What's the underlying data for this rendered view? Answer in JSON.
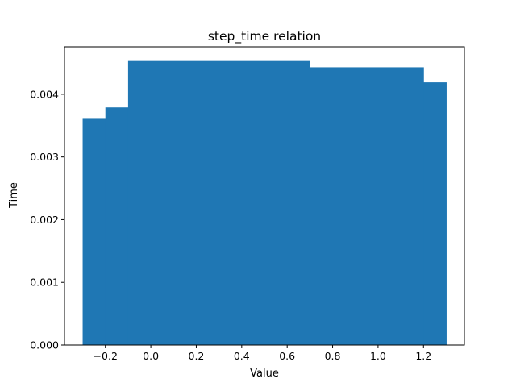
{
  "chart_data": {
    "type": "bar",
    "title": "step_time relation",
    "xlabel": "Value",
    "ylabel": "Time",
    "bar_color": "#1f77b4",
    "xlim": [
      -0.38,
      1.38
    ],
    "ylim": [
      0,
      0.004757
    ],
    "grid": false,
    "bars": [
      {
        "x0": -0.3,
        "x1": -0.2,
        "value": 0.00362
      },
      {
        "x0": -0.2,
        "x1": -0.1,
        "value": 0.00379
      },
      {
        "x0": -0.1,
        "x1": 0.7,
        "value": 0.00453
      },
      {
        "x0": 0.7,
        "x1": 1.2,
        "value": 0.00443
      },
      {
        "x0": 1.2,
        "x1": 1.3,
        "value": 0.00419
      }
    ],
    "x_ticks": [
      {
        "value": -0.2,
        "label": "−0.2"
      },
      {
        "value": 0.0,
        "label": "0.0"
      },
      {
        "value": 0.2,
        "label": "0.2"
      },
      {
        "value": 0.4,
        "label": "0.4"
      },
      {
        "value": 0.6,
        "label": "0.6"
      },
      {
        "value": 0.8,
        "label": "0.8"
      },
      {
        "value": 1.0,
        "label": "1.0"
      },
      {
        "value": 1.2,
        "label": "1.2"
      }
    ],
    "y_ticks": [
      {
        "value": 0.0,
        "label": "0.000"
      },
      {
        "value": 0.001,
        "label": "0.001"
      },
      {
        "value": 0.002,
        "label": "0.002"
      },
      {
        "value": 0.003,
        "label": "0.003"
      },
      {
        "value": 0.004,
        "label": "0.004"
      }
    ]
  }
}
